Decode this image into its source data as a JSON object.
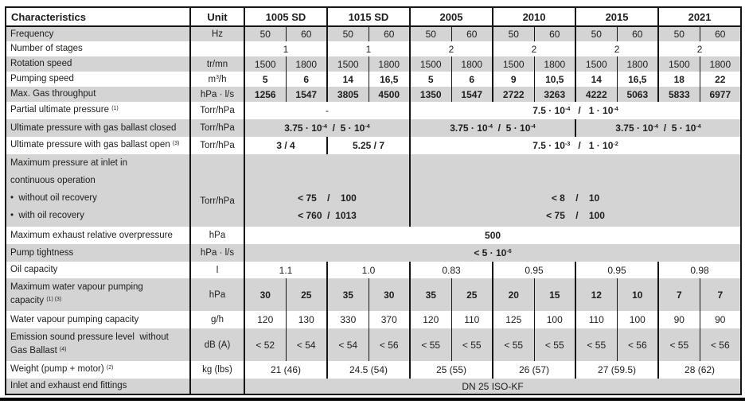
{
  "colors": {
    "row_band_gray": "#d4d4d4",
    "grid_black": "#161616",
    "text": "#1d1d1b",
    "background": "#ffffff"
  },
  "table": {
    "corner_label": "Characteristics",
    "unit_label": "Unit",
    "models": [
      "1005 SD",
      "1015 SD",
      "2005",
      "2010",
      "2015",
      "2021"
    ],
    "rows": [
      {
        "id": "frequency",
        "shade": "gray",
        "unit": "Hz",
        "label": [
          {
            "text": "Frequency"
          }
        ],
        "cells": [
          {
            "t": "50"
          },
          {
            "t": "60"
          },
          {
            "t": "50"
          },
          {
            "t": "60"
          },
          {
            "t": "50"
          },
          {
            "t": "60"
          },
          {
            "t": "50"
          },
          {
            "t": "60"
          },
          {
            "t": "50"
          },
          {
            "t": "60"
          },
          {
            "t": "50"
          },
          {
            "t": "60"
          }
        ]
      },
      {
        "id": "stages",
        "shade": "white",
        "unit": "",
        "label": [
          {
            "text": "Number of stages"
          }
        ],
        "cells": [
          {
            "t": "1",
            "span": 2
          },
          {
            "t": "1",
            "span": 2
          },
          {
            "t": "2",
            "span": 2
          },
          {
            "t": "2",
            "span": 2
          },
          {
            "t": "2",
            "span": 2
          },
          {
            "t": "2",
            "span": 2
          }
        ]
      },
      {
        "id": "rotation-speed",
        "shade": "gray",
        "unit": "tr/mn",
        "label": [
          {
            "text": "Rotation speed"
          }
        ],
        "cells": [
          {
            "t": "1500"
          },
          {
            "t": "1800"
          },
          {
            "t": "1500"
          },
          {
            "t": "1800"
          },
          {
            "t": "1500"
          },
          {
            "t": "1800"
          },
          {
            "t": "1500"
          },
          {
            "t": "1800"
          },
          {
            "t": "1500"
          },
          {
            "t": "1800"
          },
          {
            "t": "1500"
          },
          {
            "t": "1800"
          }
        ]
      },
      {
        "id": "pumping-speed",
        "shade": "white",
        "bold": true,
        "unit": "m^3/h",
        "label": [
          {
            "text": "Pumping speed"
          }
        ],
        "cells": [
          {
            "t": "5"
          },
          {
            "t": "6"
          },
          {
            "t": "14"
          },
          {
            "t": "16,5"
          },
          {
            "t": "5"
          },
          {
            "t": "6"
          },
          {
            "t": "9"
          },
          {
            "t": "10,5"
          },
          {
            "t": "14"
          },
          {
            "t": "16,5"
          },
          {
            "t": "18"
          },
          {
            "t": "22"
          }
        ]
      },
      {
        "id": "max-gas-throughput",
        "shade": "gray",
        "bold": true,
        "unit": "hPa · l/s",
        "label": [
          {
            "text": "Max. Gas throughput"
          }
        ],
        "cells": [
          {
            "t": "1256"
          },
          {
            "t": "1547"
          },
          {
            "t": "3805"
          },
          {
            "t": "4500"
          },
          {
            "t": "1350"
          },
          {
            "t": "1547"
          },
          {
            "t": "2722"
          },
          {
            "t": "3263"
          },
          {
            "t": "4222"
          },
          {
            "t": "5063"
          },
          {
            "t": "5833"
          },
          {
            "t": "6977"
          }
        ]
      },
      {
        "id": "partial-ultimate-pressure",
        "shade": "white",
        "unit": "Torr/hPa",
        "label": [
          {
            "text": "Partial ultimate pressure",
            "note": "(1)"
          }
        ],
        "cells": [
          {
            "t": "-",
            "span": 4
          },
          {
            "t": "7.5 · 10^-4   /   1 · 10^-4",
            "span": 8,
            "bold": true
          }
        ]
      },
      {
        "id": "ballast-closed",
        "shade": "gray",
        "bold": true,
        "unit": "Torr/hPa",
        "label": [
          {
            "text": "Ultimate pressure with gas ballast closed"
          }
        ],
        "cells": [
          {
            "t": "3.75 · 10^-4  /  5 · 10^-4",
            "span": 4
          },
          {
            "t": "3.75 · 10^-4  /  5 · 10^-4",
            "span": 4
          },
          {
            "t": "3.75 · 10^-4  /  5 · 10^-4",
            "span": 4
          }
        ]
      },
      {
        "id": "ballast-open",
        "shade": "white",
        "bold": true,
        "unit": "Torr/hPa",
        "label": [
          {
            "text": "Ultimate pressure with gas ballast open",
            "note": "(3)"
          }
        ],
        "cells": [
          {
            "t": "3 / 4",
            "span": 2
          },
          {
            "t": "5.25 / 7",
            "span": 2
          },
          {
            "t": "7.5 · 10^-3   /   1 · 10^-2",
            "span": 8
          }
        ]
      },
      {
        "id": "inlet-pressure",
        "shade": "gray",
        "bold": true,
        "unit": "Torr/hPa",
        "label": [
          {
            "text": "Maximum pressure at inlet in"
          },
          {
            "text": "continuous operation"
          },
          {
            "text": "•  without oil recovery"
          },
          {
            "text": "•  with oil recovery"
          }
        ],
        "cells": [
          {
            "lines": [
              "< 75    /    100",
              "< 760  /  1013"
            ],
            "span": 4
          },
          {
            "lines": [
              "< 8    /    10",
              "< 75    /    100"
            ],
            "span": 8
          }
        ]
      },
      {
        "id": "exhaust-overpressure",
        "shade": "white",
        "bold": true,
        "unit": "hPa",
        "label": [
          {
            "text": "Maximum exhaust relative overpressure"
          }
        ],
        "cells": [
          {
            "t": "500",
            "span": 12
          }
        ]
      },
      {
        "id": "pump-tightness",
        "shade": "gray",
        "bold": true,
        "unit": "hPa · l/s",
        "label": [
          {
            "text": "Pump tightness"
          }
        ],
        "cells": [
          {
            "t": "< 5 · 10^-6",
            "span": 12
          }
        ]
      },
      {
        "id": "oil-capacity",
        "shade": "white",
        "unit": "l",
        "label": [
          {
            "text": "Oil capacity"
          }
        ],
        "cells": [
          {
            "t": "1.1",
            "span": 2
          },
          {
            "t": "1.0",
            "span": 2
          },
          {
            "t": "0.83",
            "span": 2
          },
          {
            "t": "0.95",
            "span": 2
          },
          {
            "t": "0.95",
            "span": 2
          },
          {
            "t": "0.98",
            "span": 2
          }
        ]
      },
      {
        "id": "max-water-vapour",
        "shade": "gray",
        "bold": true,
        "unit": "hPa",
        "label": [
          {
            "text": "Maximum water vapour pumping"
          },
          {
            "text": "capacity",
            "note": "(1) (3)"
          }
        ],
        "cells": [
          {
            "t": "30"
          },
          {
            "t": "25"
          },
          {
            "t": "35"
          },
          {
            "t": "30"
          },
          {
            "t": "35"
          },
          {
            "t": "25"
          },
          {
            "t": "20"
          },
          {
            "t": "15"
          },
          {
            "t": "12"
          },
          {
            "t": "10"
          },
          {
            "t": "7"
          },
          {
            "t": "7"
          }
        ]
      },
      {
        "id": "water-vapour-capacity",
        "shade": "white",
        "unit": "g/h",
        "label": [
          {
            "text": "Water vapour pumping capacity"
          }
        ],
        "cells": [
          {
            "t": "120"
          },
          {
            "t": "130"
          },
          {
            "t": "330"
          },
          {
            "t": "370"
          },
          {
            "t": "120"
          },
          {
            "t": "110"
          },
          {
            "t": "125"
          },
          {
            "t": "100"
          },
          {
            "t": "110"
          },
          {
            "t": "100"
          },
          {
            "t": "90"
          },
          {
            "t": "90"
          }
        ]
      },
      {
        "id": "emission-sound",
        "shade": "gray",
        "unit": "dB (A)",
        "label": [
          {
            "text": "Emission sound pressure level  without"
          },
          {
            "text": "Gas Ballast",
            "note": "(4)"
          }
        ],
        "cells": [
          {
            "t": "< 52"
          },
          {
            "t": "< 54"
          },
          {
            "t": "< 54"
          },
          {
            "t": "< 56"
          },
          {
            "t": "< 55"
          },
          {
            "t": "< 55"
          },
          {
            "t": "< 55"
          },
          {
            "t": "< 55"
          },
          {
            "t": "< 55"
          },
          {
            "t": "< 56"
          },
          {
            "t": "< 55"
          },
          {
            "t": "< 56"
          }
        ]
      },
      {
        "id": "weight",
        "shade": "white",
        "unit": "kg (lbs)",
        "label": [
          {
            "text": "Weight (pump + motor)",
            "note": "(2)"
          }
        ],
        "cells": [
          {
            "t": "21 (46)",
            "span": 2
          },
          {
            "t": "24.5 (54)",
            "span": 2
          },
          {
            "t": "25 (55)",
            "span": 2
          },
          {
            "t": "26 (57)",
            "span": 2
          },
          {
            "t": "27 (59.5)",
            "span": 2
          },
          {
            "t": "28 (62)",
            "span": 2
          }
        ]
      },
      {
        "id": "fittings",
        "shade": "gray",
        "unit": "",
        "label": [
          {
            "text": "Inlet and exhaust end fittings"
          }
        ],
        "cells": [
          {
            "t": "DN 25 ISO-KF",
            "span": 12
          }
        ]
      }
    ]
  }
}
